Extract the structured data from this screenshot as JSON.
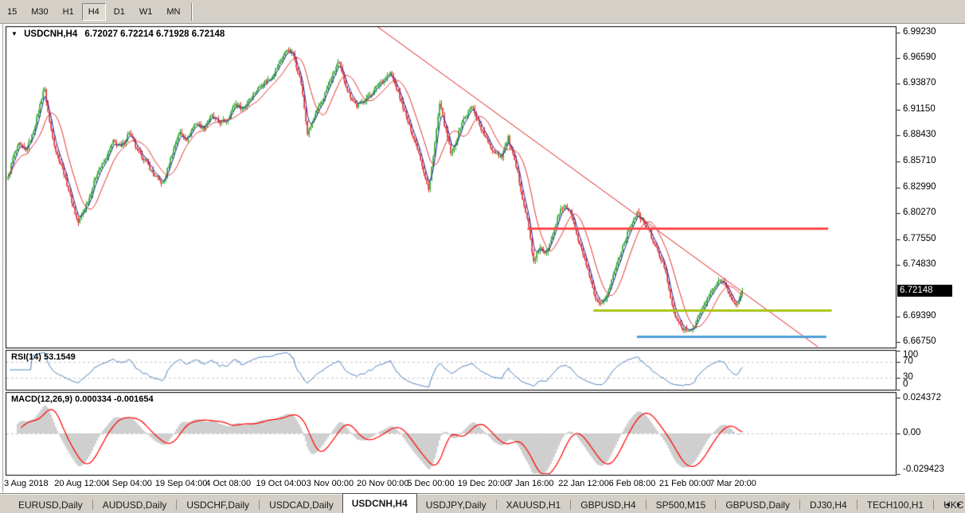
{
  "toolbar": {
    "timeframes": [
      {
        "label": "15",
        "active": false
      },
      {
        "label": "M30",
        "active": false
      },
      {
        "label": "H1",
        "active": false
      },
      {
        "label": "H4",
        "active": true
      },
      {
        "label": "D1",
        "active": false
      },
      {
        "label": "W1",
        "active": false
      },
      {
        "label": "MN",
        "active": false
      }
    ]
  },
  "chart": {
    "title_symbol": "USDCNH,H4",
    "title_quotes": "6.72027 6.72214 6.71928 6.72148",
    "price_tag": "6.72148",
    "dropdown_icon": "▼"
  },
  "price_axis": {
    "labels": [
      "6.99230",
      "6.96590",
      "6.93870",
      "6.91150",
      "6.88430",
      "6.85710",
      "6.82990",
      "6.80270",
      "6.77550",
      "6.74830",
      "6.69390",
      "6.66750"
    ]
  },
  "rsi": {
    "label": "RSI(14) 53.1549",
    "axis": [
      "100",
      "70",
      "30",
      "0"
    ],
    "axis_values": [
      100,
      70,
      30,
      0
    ],
    "levels": [
      70,
      30
    ]
  },
  "macd": {
    "label": "MACD(12,26,9) 0.000334 -0.001654",
    "axis": [
      "0.024372",
      "0.00",
      "-0.029423"
    ],
    "axis_values": [
      0.024372,
      0,
      -0.029423
    ]
  },
  "time_axis": {
    "labels": [
      "3 Aug 2018",
      "20 Aug 12:00",
      "4 Sep 04:00",
      "19 Sep 04:00",
      "4 Oct 08:00",
      "19 Oct 04:00",
      "3 Nov 00:00",
      "20 Nov 00:00",
      "5 Dec 00:00",
      "19 Dec 20:00",
      "7 Jan 16:00",
      "22 Jan 12:00",
      "6 Feb 08:00",
      "21 Feb 00:00",
      "7 Mar 20:00"
    ]
  },
  "tabs": {
    "items": [
      {
        "label": "EURUSD,Daily",
        "active": false
      },
      {
        "label": "AUDUSD,Daily",
        "active": false
      },
      {
        "label": "USDCHF,Daily",
        "active": false
      },
      {
        "label": "USDCAD,Daily",
        "active": false
      },
      {
        "label": "USDCNH,H4",
        "active": true
      },
      {
        "label": "USDJPY,Daily",
        "active": false
      },
      {
        "label": "XAUUSD,H1",
        "active": false
      },
      {
        "label": "GBPUSD,H4",
        "active": false
      },
      {
        "label": "SP500,M15",
        "active": false
      },
      {
        "label": "GBPUSD,Daily",
        "active": false
      },
      {
        "label": "DJ30,H4",
        "active": false
      },
      {
        "label": "TECH100,H1",
        "active": false
      },
      {
        "label": "UKC",
        "active": false
      }
    ],
    "scroll_left": "◄",
    "scroll_right": "►"
  },
  "chart_data": {
    "type": "candlestick",
    "symbol": "USDCNH",
    "timeframe": "H4",
    "title": "USDCNH,H4",
    "last_ohlc": {
      "open": 6.72027,
      "high": 6.72214,
      "low": 6.71928,
      "close": 6.72148
    },
    "y_axis": {
      "min": 6.6675,
      "max": 6.9923,
      "tick_step": 0.0272
    },
    "x_range": [
      "3 Aug 2018",
      "7 Mar 20:00"
    ],
    "price_path": [
      [
        0.0,
        6.84
      ],
      [
        0.007,
        6.862
      ],
      [
        0.015,
        6.875
      ],
      [
        0.024,
        6.868
      ],
      [
        0.033,
        6.885
      ],
      [
        0.041,
        6.908
      ],
      [
        0.049,
        6.936
      ],
      [
        0.056,
        6.9
      ],
      [
        0.065,
        6.868
      ],
      [
        0.074,
        6.85
      ],
      [
        0.085,
        6.82
      ],
      [
        0.095,
        6.792
      ],
      [
        0.111,
        6.82
      ],
      [
        0.121,
        6.845
      ],
      [
        0.132,
        6.858
      ],
      [
        0.143,
        6.878
      ],
      [
        0.154,
        6.872
      ],
      [
        0.165,
        6.888
      ],
      [
        0.176,
        6.868
      ],
      [
        0.187,
        6.858
      ],
      [
        0.197,
        6.845
      ],
      [
        0.211,
        6.833
      ],
      [
        0.222,
        6.862
      ],
      [
        0.233,
        6.888
      ],
      [
        0.244,
        6.88
      ],
      [
        0.255,
        6.898
      ],
      [
        0.266,
        6.892
      ],
      [
        0.277,
        6.905
      ],
      [
        0.287,
        6.898
      ],
      [
        0.298,
        6.9
      ],
      [
        0.309,
        6.918
      ],
      [
        0.32,
        6.912
      ],
      [
        0.331,
        6.925
      ],
      [
        0.345,
        6.938
      ],
      [
        0.358,
        6.945
      ],
      [
        0.371,
        6.962
      ],
      [
        0.38,
        6.975
      ],
      [
        0.388,
        6.97
      ],
      [
        0.399,
        6.94
      ],
      [
        0.408,
        6.885
      ],
      [
        0.418,
        6.905
      ],
      [
        0.428,
        6.922
      ],
      [
        0.439,
        6.942
      ],
      [
        0.45,
        6.962
      ],
      [
        0.463,
        6.93
      ],
      [
        0.475,
        6.915
      ],
      [
        0.486,
        6.922
      ],
      [
        0.497,
        6.93
      ],
      [
        0.504,
        6.938
      ],
      [
        0.521,
        6.95
      ],
      [
        0.531,
        6.93
      ],
      [
        0.544,
        6.9
      ],
      [
        0.559,
        6.868
      ],
      [
        0.573,
        6.826
      ],
      [
        0.588,
        6.918
      ],
      [
        0.604,
        6.863
      ],
      [
        0.618,
        6.898
      ],
      [
        0.632,
        6.915
      ],
      [
        0.645,
        6.89
      ],
      [
        0.659,
        6.87
      ],
      [
        0.672,
        6.862
      ],
      [
        0.681,
        6.882
      ],
      [
        0.694,
        6.845
      ],
      [
        0.703,
        6.81
      ],
      [
        0.709,
        6.79
      ],
      [
        0.716,
        6.75
      ],
      [
        0.724,
        6.768
      ],
      [
        0.732,
        6.758
      ],
      [
        0.743,
        6.785
      ],
      [
        0.752,
        6.805
      ],
      [
        0.759,
        6.812
      ],
      [
        0.768,
        6.8
      ],
      [
        0.776,
        6.775
      ],
      [
        0.784,
        6.758
      ],
      [
        0.792,
        6.735
      ],
      [
        0.8,
        6.712
      ],
      [
        0.808,
        6.705
      ],
      [
        0.817,
        6.72
      ],
      [
        0.826,
        6.742
      ],
      [
        0.837,
        6.768
      ],
      [
        0.849,
        6.792
      ],
      [
        0.857,
        6.803
      ],
      [
        0.87,
        6.788
      ],
      [
        0.878,
        6.775
      ],
      [
        0.887,
        6.758
      ],
      [
        0.895,
        6.745
      ],
      [
        0.906,
        6.7
      ],
      [
        0.913,
        6.688
      ],
      [
        0.924,
        6.678
      ],
      [
        0.933,
        6.682
      ],
      [
        0.941,
        6.695
      ],
      [
        0.952,
        6.712
      ],
      [
        0.962,
        6.725
      ],
      [
        0.971,
        6.733
      ],
      [
        0.978,
        6.728
      ],
      [
        0.985,
        6.713
      ],
      [
        0.991,
        6.7045
      ],
      [
        0.997,
        6.715
      ],
      [
        1.0,
        6.72148
      ]
    ],
    "overlays": {
      "trendline_descending": {
        "x1_frac": 0.4165,
        "price1": 6.999,
        "x2_frac": 0.9131,
        "price2": 6.662,
        "color": "#e02020",
        "width": 1
      },
      "resistance_red": {
        "price": 6.787,
        "x1_frac": 0.586,
        "x2_frac": 0.924,
        "color": "#ff4d4d",
        "width": 3
      },
      "support_olive": {
        "price": 6.701,
        "x1_frac": 0.66,
        "x2_frac": 0.928,
        "color": "#a9c418",
        "width": 3
      },
      "support_blue": {
        "price": 6.673,
        "x1_frac": 0.709,
        "x2_frac": 0.922,
        "color": "#4d9fd6",
        "width": 3
      }
    },
    "indicators": {
      "rsi": {
        "period": 14,
        "current": 53.1549,
        "levels": [
          70,
          30
        ],
        "range": [
          0,
          100
        ]
      },
      "macd": {
        "fast": 12,
        "slow": 26,
        "signal": 9,
        "current_macd": 0.000334,
        "current_signal": -0.001654,
        "axis_max": 0.024372,
        "axis_min": -0.029423
      }
    },
    "moving_averages": [
      {
        "type": "fast",
        "color": "#2222aa"
      },
      {
        "type": "slow",
        "color": "#e03232"
      }
    ],
    "colors": {
      "bull_candle": "#28a828",
      "bear_candle": "#e03232",
      "rsi_line": "#4a7ebb",
      "macd_histogram": "#c0c0c0",
      "macd_signal": "#ff0000",
      "background": "#ffffff",
      "chrome": "#d4d0c8",
      "level_dash": "#c8c8c8"
    }
  }
}
